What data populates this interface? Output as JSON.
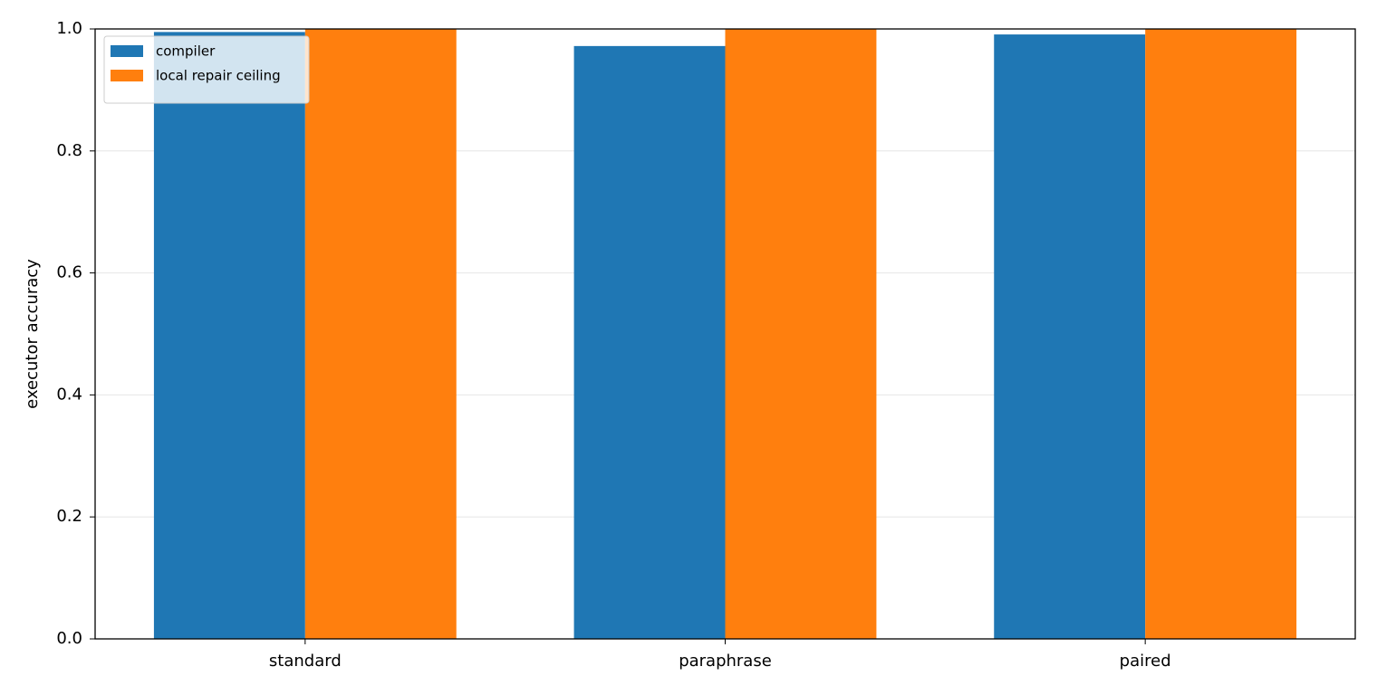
{
  "chart_data": {
    "type": "bar",
    "categories": [
      "standard",
      "paraphrase",
      "paired"
    ],
    "series": [
      {
        "name": "compiler",
        "color": "#1f77b4",
        "values": [
          0.995,
          0.972,
          0.991
        ]
      },
      {
        "name": "local repair ceiling",
        "color": "#ff7f0e",
        "values": [
          1.0,
          1.0,
          1.0
        ]
      }
    ],
    "ylabel": "executor accuracy",
    "ylim": [
      0,
      1.0
    ],
    "yticks": [
      {
        "value": 0,
        "label": "0.0"
      },
      {
        "value": 0.2,
        "label": "0.2"
      },
      {
        "value": 0.4,
        "label": "0.4"
      },
      {
        "value": 0.6,
        "label": "0.6"
      },
      {
        "value": 0.8,
        "label": "0.8"
      },
      {
        "value": 1.0,
        "label": "1.0"
      }
    ],
    "grid": true,
    "legend": "upper-left"
  }
}
